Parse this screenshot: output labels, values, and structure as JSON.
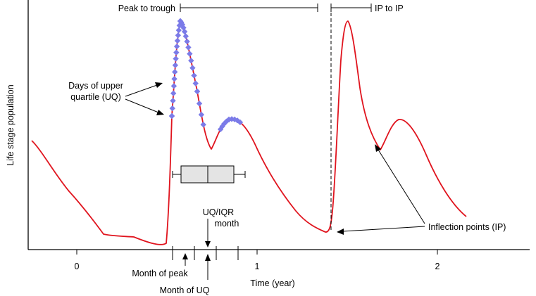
{
  "labels": {
    "y_axis": "Life stage population",
    "x_axis": "Time (year)",
    "peak_to_trough": "Peak to trough",
    "ip_to_ip": "IP to IP",
    "days_uq_line1": "Days of upper",
    "days_uq_line2": "quartile (UQ)",
    "uq_iqr_line1": "UQ/IQR",
    "uq_iqr_line2": "month",
    "month_of_peak": "Month of peak",
    "month_of_uq": "Month of UQ",
    "inflection_points": "Inflection points (IP)"
  },
  "x_ticks": [
    "0",
    "1",
    "2"
  ],
  "colors": {
    "curve": "#e0141e",
    "upper_quartile_markers": "#7b7be8",
    "box": "#e4e4e4"
  }
}
